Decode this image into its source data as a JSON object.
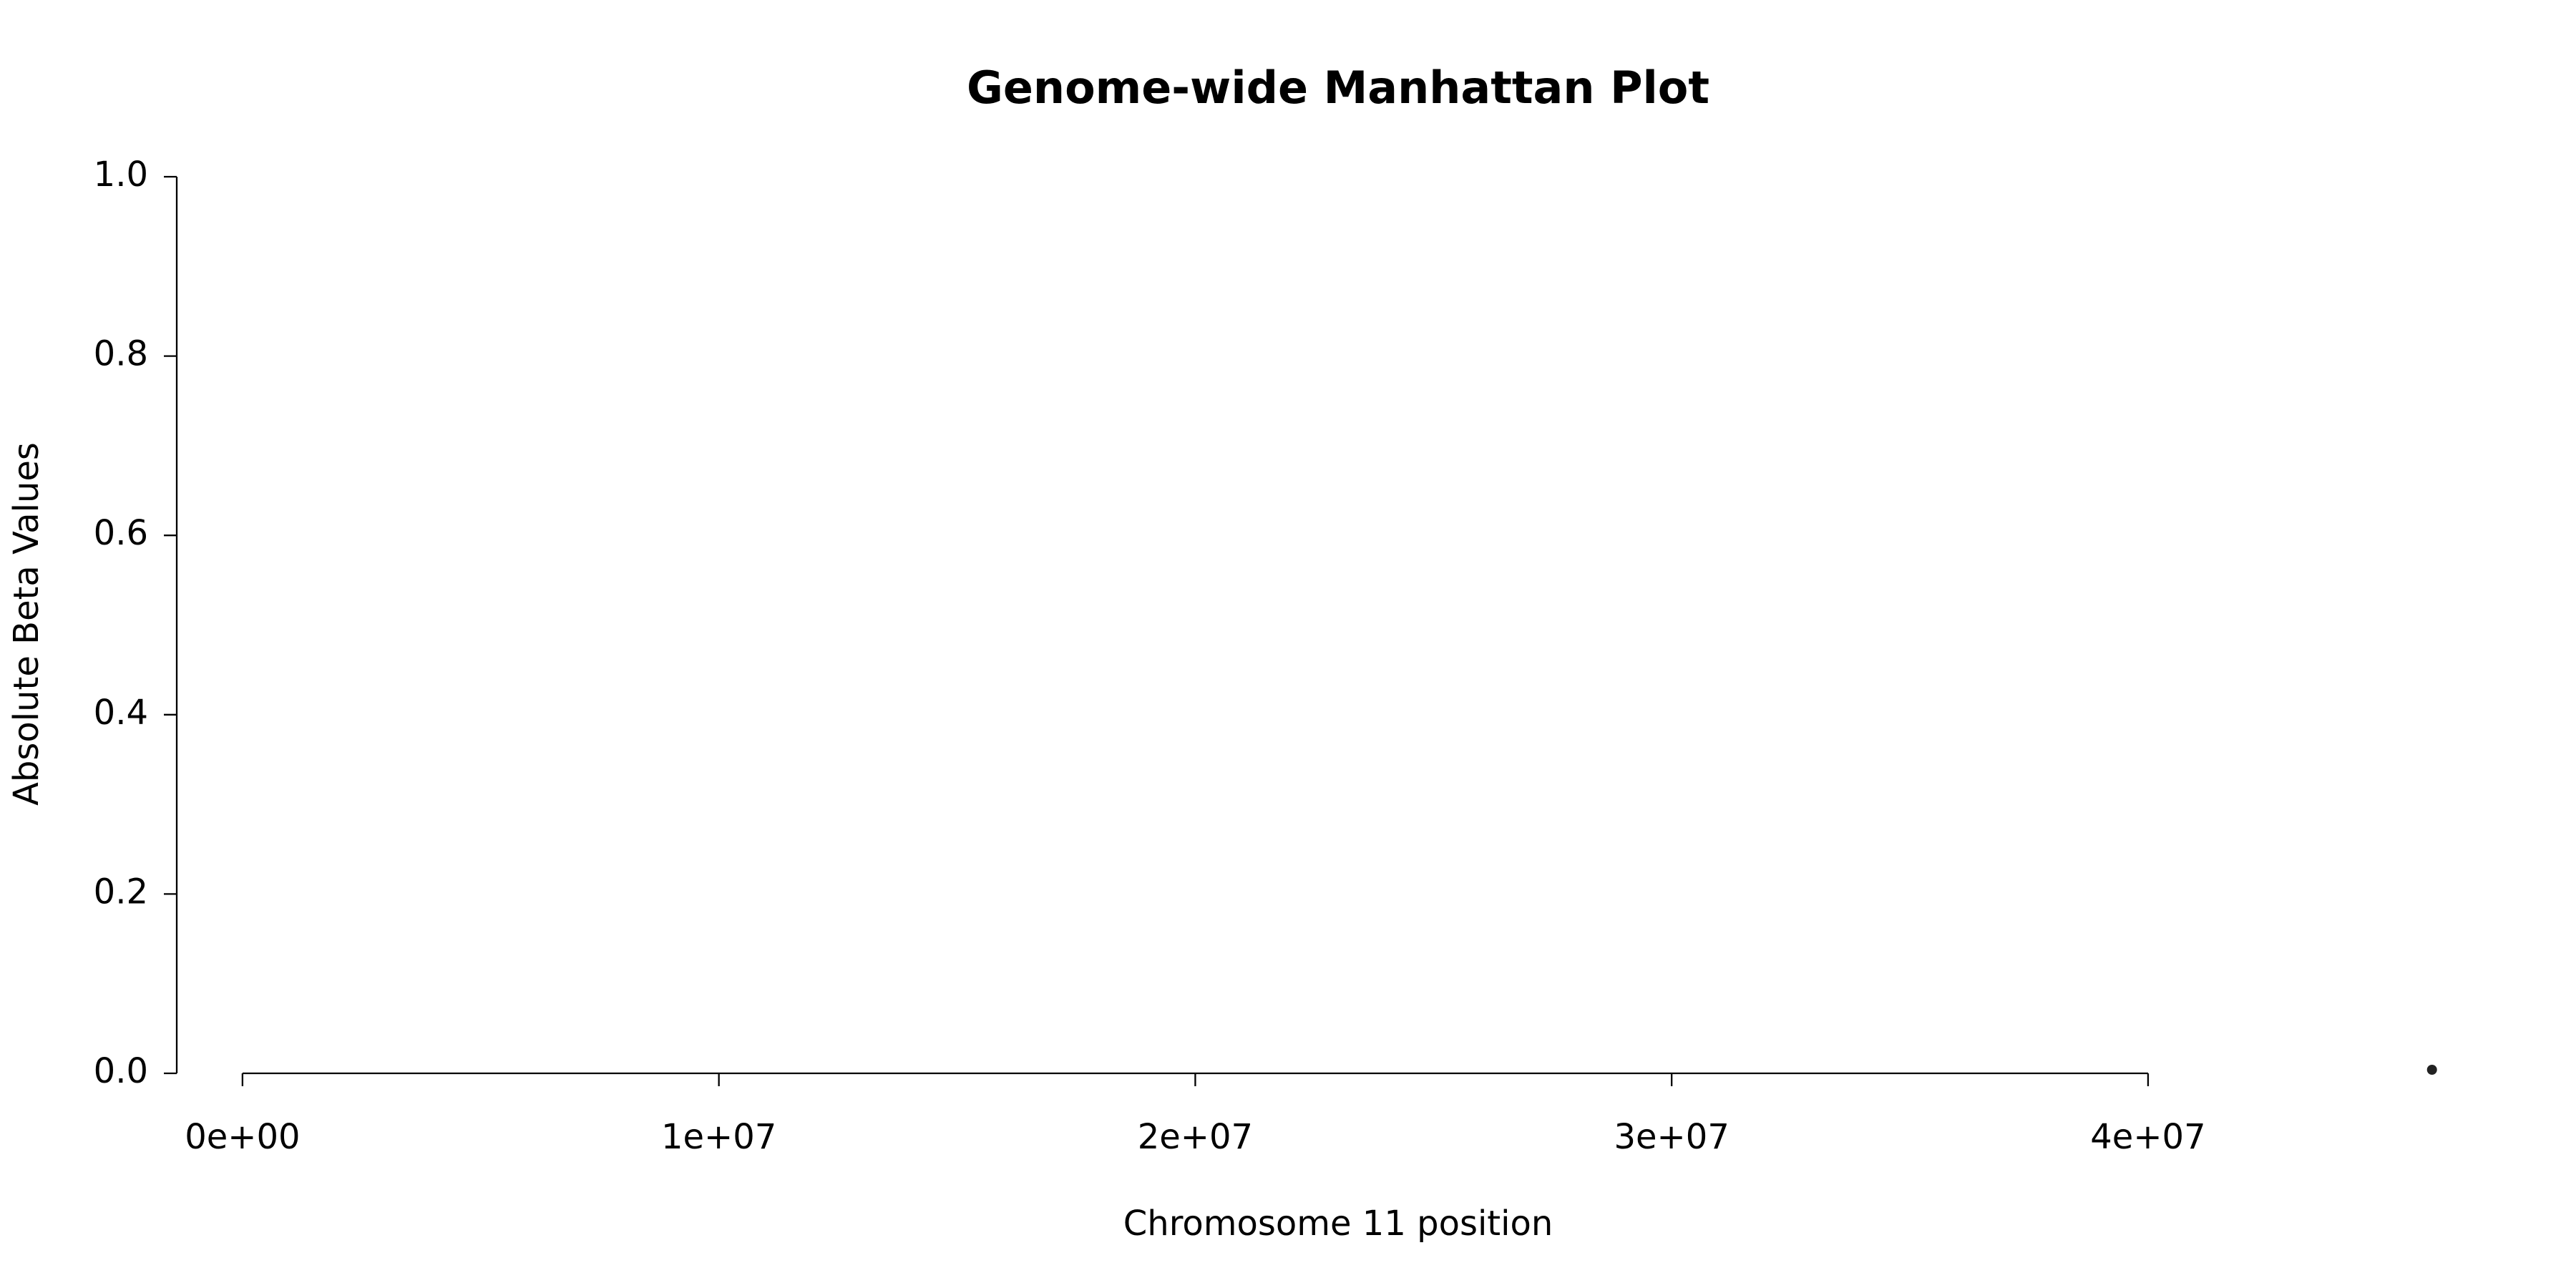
{
  "chart_data": {
    "type": "scatter",
    "title": "Genome-wide Manhattan Plot",
    "x_label": "Chromosome 11 position",
    "y_label": "Absolute Beta Values",
    "series": [
      {
        "color": "#222222",
        "x": [
          45960000
        ],
        "values": [
          0.004
        ]
      }
    ],
    "xlim": [
      -1380000,
      46730000
    ],
    "xticks": [
      {
        "value": 0,
        "label": "0e+00"
      },
      {
        "value": 10000000,
        "label": "1e+07"
      },
      {
        "value": 20000000,
        "label": "2e+07"
      },
      {
        "value": 30000000,
        "label": "3e+07"
      },
      {
        "value": 40000000,
        "label": "4e+07"
      }
    ],
    "ylim": [
      0,
      1
    ],
    "yticks": [
      {
        "value": 0,
        "label": "0.0"
      },
      0.2,
      0.4,
      0.6,
      0.8,
      {
        "value": 1,
        "label": "1.0"
      }
    ],
    "grid": false
  }
}
